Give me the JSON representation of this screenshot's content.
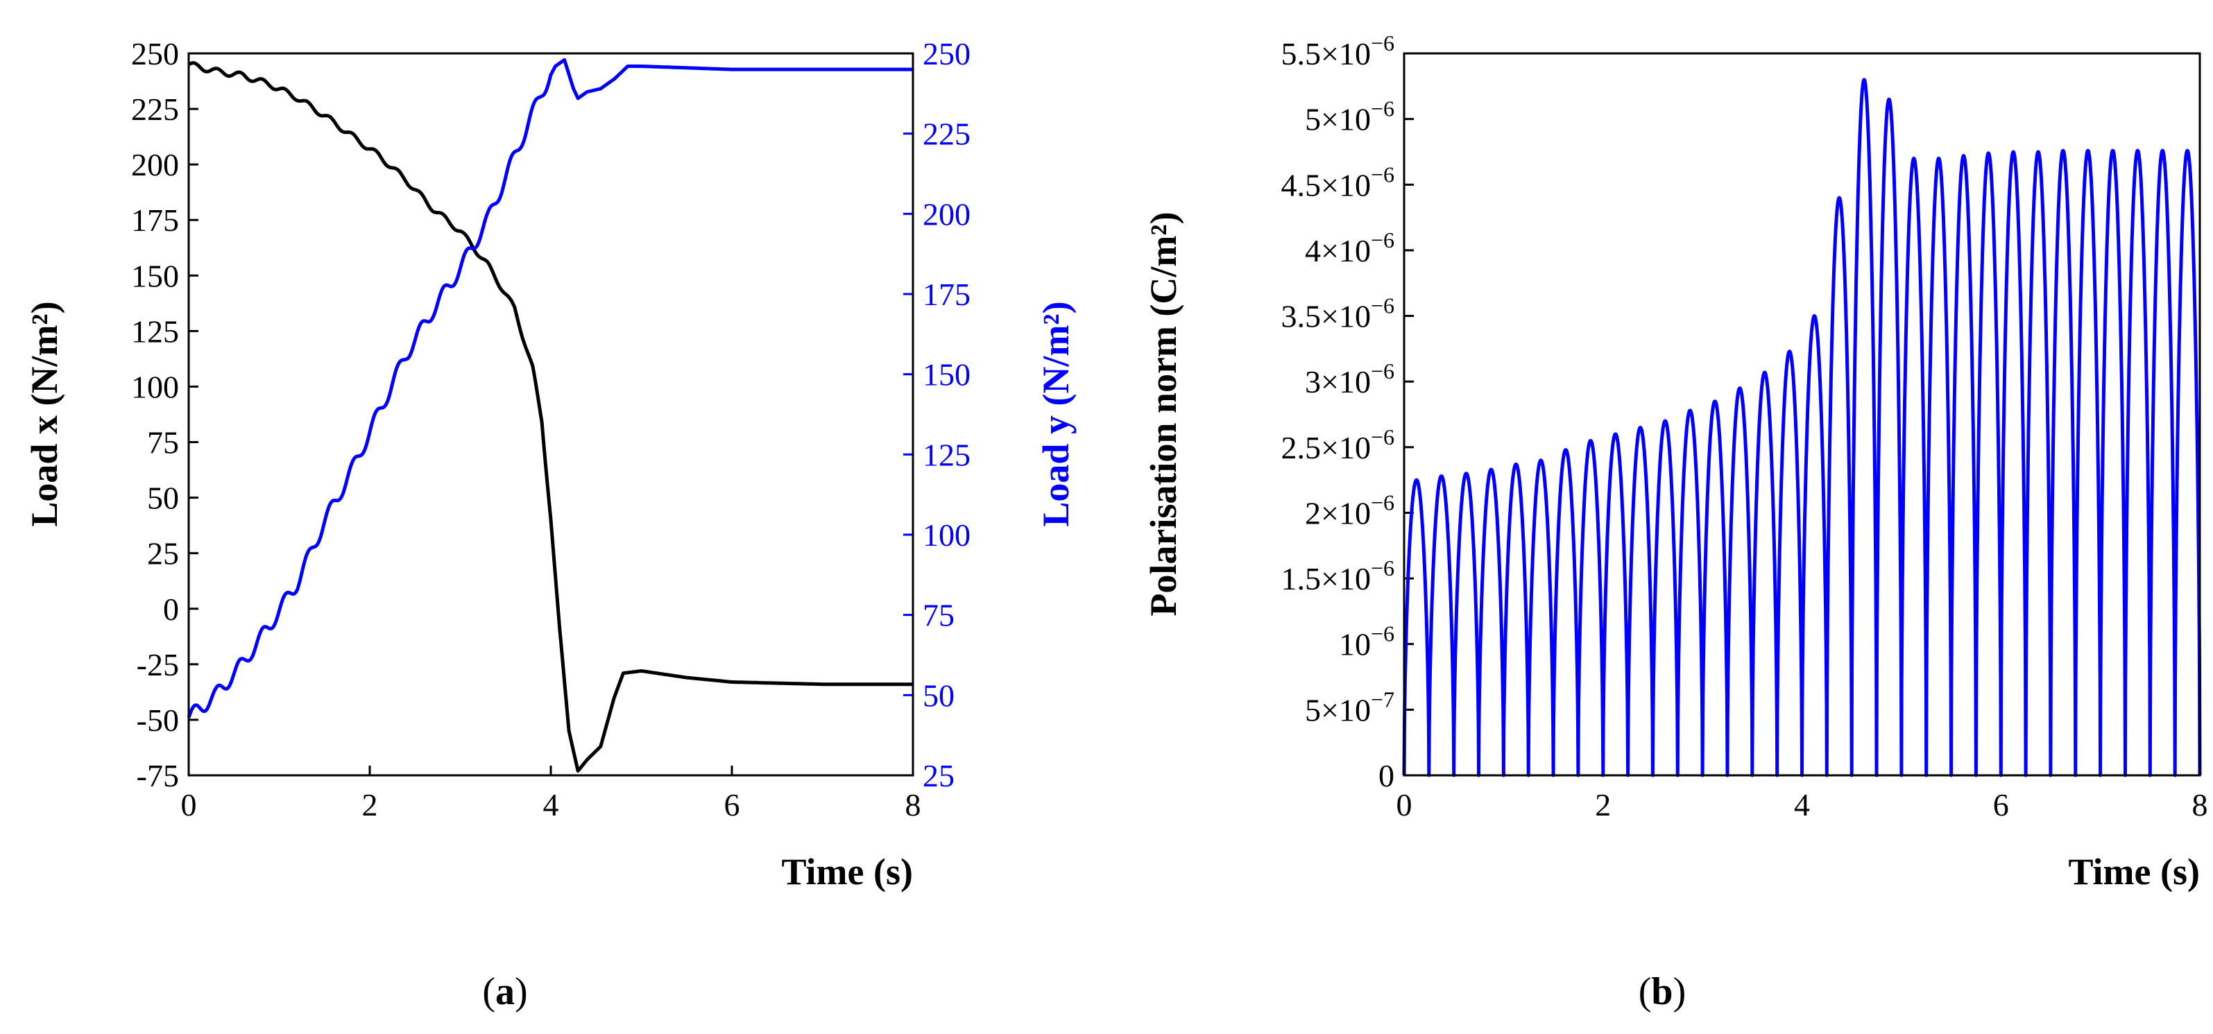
{
  "chart_data": [
    {
      "type": "line",
      "panel_label": "(a)",
      "panel_letter": "a",
      "xlabel": "Time (s)",
      "ylabel_left": "Load x (N/m²)",
      "ylabel_right": "Load y (N/m²)",
      "xlim": [
        0,
        8
      ],
      "ylim_left": [
        -75,
        250
      ],
      "ylim_right": [
        25,
        250
      ],
      "xticks": [
        "0",
        "2",
        "4",
        "6",
        "8"
      ],
      "yticks_left": [
        "250",
        "225",
        "200",
        "175",
        "150",
        "125",
        "100",
        "75",
        "50",
        "25",
        "0",
        "-25",
        "-50",
        "-75"
      ],
      "yticks_right": [
        "250",
        "225",
        "200",
        "175",
        "150",
        "125",
        "100",
        "75",
        "50",
        "25"
      ],
      "series": [
        {
          "name": "Load x",
          "axis": "left",
          "color": "#000000",
          "x": [
            0,
            0.3,
            0.6,
            0.9,
            1.2,
            1.5,
            1.8,
            2.1,
            2.4,
            2.7,
            3.0,
            3.3,
            3.6,
            3.8,
            3.9,
            4.0,
            4.1,
            4.2,
            4.3,
            4.4,
            4.55,
            4.7,
            4.8,
            5.0,
            5.5,
            6.0,
            7.0,
            8.0
          ],
          "values": [
            245,
            242,
            240,
            236,
            230,
            222,
            213,
            204,
            193,
            180,
            170,
            155,
            135,
            108,
            85,
            40,
            -10,
            -55,
            -73,
            -68,
            -62,
            -40,
            -29,
            -28,
            -31,
            -33,
            -34,
            -34
          ]
        },
        {
          "name": "Load y",
          "axis": "right",
          "color": "#0000ff",
          "x": [
            0,
            0.3,
            0.6,
            0.9,
            1.2,
            1.5,
            1.8,
            2.1,
            2.4,
            2.7,
            3.0,
            3.3,
            3.6,
            3.9,
            4.05,
            4.15,
            4.25,
            4.3,
            4.4,
            4.55,
            4.7,
            4.85,
            5.0,
            6.0,
            7.0,
            8.0
          ],
          "values": [
            43,
            50,
            60,
            72,
            85,
            104,
            120,
            138,
            156,
            170,
            183,
            198,
            218,
            238,
            246,
            248,
            239,
            236,
            238,
            239,
            242,
            246,
            246,
            245,
            245,
            245
          ]
        }
      ]
    },
    {
      "type": "line",
      "panel_label": "(b)",
      "panel_letter": "b",
      "xlabel": "Time (s)",
      "ylabel": "Polarisation norm (C/m²)",
      "xlim": [
        0,
        8
      ],
      "ylim": [
        0,
        5.5e-06
      ],
      "xticks": [
        "0",
        "2",
        "4",
        "6",
        "8"
      ],
      "yticks": [
        {
          "mant": "5.5×10",
          "exp": "−6"
        },
        {
          "mant": "5×10",
          "exp": "−6"
        },
        {
          "mant": "4.5×10",
          "exp": "−6"
        },
        {
          "mant": "4×10",
          "exp": "−6"
        },
        {
          "mant": "3.5×10",
          "exp": "−6"
        },
        {
          "mant": "3×10",
          "exp": "−6"
        },
        {
          "mant": "2.5×10",
          "exp": "−6"
        },
        {
          "mant": "2×10",
          "exp": "−6"
        },
        {
          "mant": "1.5×10",
          "exp": "−6"
        },
        {
          "mant": "10",
          "exp": "−6"
        },
        {
          "mant": "5×10",
          "exp": "−7"
        },
        {
          "mant": "0",
          "exp": ""
        }
      ],
      "series": [
        {
          "name": "Polarisation norm",
          "color": "#0000ff",
          "oscillation_period_s": 0.25,
          "peak_values": [
            2.25e-06,
            2.28e-06,
            2.3e-06,
            2.33e-06,
            2.37e-06,
            2.4e-06,
            2.48e-06,
            2.55e-06,
            2.6e-06,
            2.65e-06,
            2.7e-06,
            2.78e-06,
            2.85e-06,
            2.95e-06,
            3.07e-06,
            3.23e-06,
            3.5e-06,
            4.4e-06,
            5.3e-06,
            5.15e-06,
            4.7e-06,
            4.7e-06,
            4.72e-06,
            4.74e-06,
            4.75e-06,
            4.75e-06,
            4.76e-06,
            4.76e-06,
            4.76e-06,
            4.76e-06,
            4.76e-06,
            4.76e-06
          ]
        }
      ]
    }
  ]
}
